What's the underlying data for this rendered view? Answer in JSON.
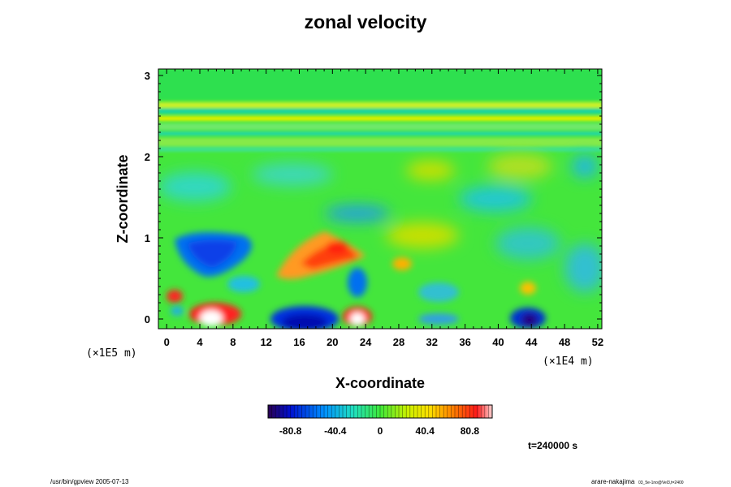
{
  "chart_data": {
    "type": "heatmap",
    "title": "zonal velocity",
    "xlabel": "X-coordinate",
    "ylabel": "Z-coordinate",
    "x_ticks": [
      "0",
      "4",
      "8",
      "12",
      "16",
      "20",
      "24",
      "28",
      "32",
      "36",
      "40",
      "44",
      "48",
      "52"
    ],
    "y_ticks": [
      "0",
      "1",
      "2",
      "3"
    ],
    "x_range": [
      -1,
      52.5
    ],
    "y_range": [
      -0.12,
      3.08
    ],
    "x_scale_label": "(×1E4 m)",
    "y_scale_label": "(×1E5 m)",
    "colorbar": {
      "ticks": [
        "-80.8",
        "-40.4",
        "0",
        "40.4",
        "80.8"
      ],
      "tick_values": [
        -80.8,
        -40.4,
        0,
        40.4,
        80.8
      ],
      "range": [
        -101,
        101
      ]
    },
    "features": [
      {
        "name": "blue-lobe-low-left",
        "x": 6,
        "z": 0.75,
        "value": -55
      },
      {
        "name": "red-lobe-mid",
        "x": 19,
        "z": 0.78,
        "value": 60
      },
      {
        "name": "blue-core-bottom",
        "x": 17,
        "z": 0.05,
        "value": -85
      },
      {
        "name": "white-hot-bottom-left",
        "x": 5,
        "z": 0.02,
        "value": 100
      },
      {
        "name": "white-hot-bottom-mid",
        "x": 23,
        "z": 0.02,
        "value": 95
      },
      {
        "name": "blue-core-bottom-right",
        "x": 43,
        "z": 0.02,
        "value": -80
      },
      {
        "name": "yellow-band-upper",
        "x": 26,
        "z": 2.6,
        "value": 30
      }
    ],
    "time_label": "t=240000 s"
  },
  "footer": {
    "left": "/usr/bin/gpview 2005-07-13",
    "right": "arare-nakajima",
    "right_sub": "03_5e-1no@Vel3,t=2400"
  }
}
